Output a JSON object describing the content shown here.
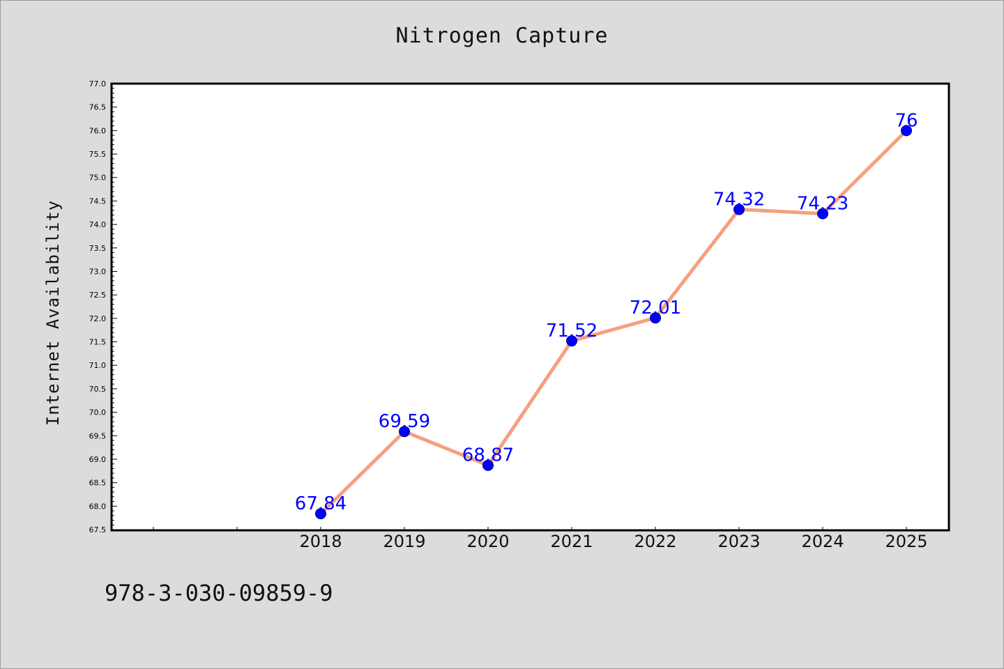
{
  "colors": {
    "background": "#dcdcdc",
    "plot_background": "#ffffff",
    "line": "#f5a07f",
    "marker": "#0000ff",
    "data_label": "#0000ff"
  },
  "footnote": "978-3-030-09859-9",
  "chart_data": {
    "type": "line",
    "title": "Nitrogen Capture",
    "xlabel": "",
    "ylabel": "Internet Availability",
    "x": [
      "2018",
      "2019",
      "2020",
      "2021",
      "2022",
      "2023",
      "2024",
      "2025"
    ],
    "series": [
      {
        "values": [
          67.84,
          69.59,
          68.87,
          71.52,
          72.01,
          74.32,
          74.23,
          76
        ]
      }
    ],
    "data_labels": [
      "67.84",
      "69.59",
      "68.87",
      "71.52",
      "72.01",
      "74.32",
      "74.23",
      "76"
    ],
    "ylim": [
      67.5,
      77.0
    ],
    "yticks": [
      "67.5",
      "68.0",
      "68.5",
      "69.0",
      "69.5",
      "70.0",
      "70.5",
      "71.0",
      "71.5",
      "72.0",
      "72.5",
      "73.0",
      "73.5",
      "74.0",
      "74.5",
      "75.0",
      "75.5",
      "76.0",
      "76.5",
      "77.0"
    ],
    "x_axis_slots": 10,
    "grid": false,
    "legend": "none"
  }
}
